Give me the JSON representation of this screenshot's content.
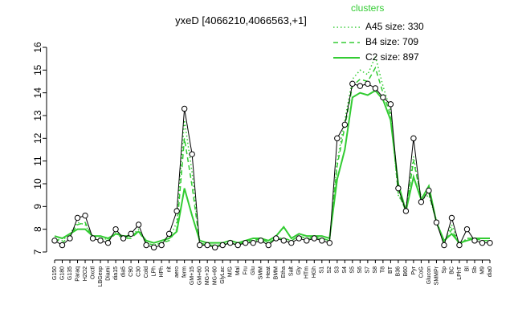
{
  "chart_data": {
    "type": "line",
    "title": "yxeD [4066210,4066563,+1]",
    "legend_title": "clusters",
    "legend_position": "top-right",
    "categories": [
      "G150",
      "G180",
      "G135",
      "Paraq",
      "H2O2",
      "Oxctl",
      "LBGexp",
      "Diami",
      "dia15",
      "dia5",
      "C90",
      "C30",
      "Cold",
      "LPh",
      "HPh",
      "nit",
      "aero",
      "ferm",
      "GM+15",
      "GM+60",
      "MG+10",
      "MG+60",
      "GlyLac",
      "M/G",
      "Mal",
      "Fru",
      "Glu",
      "SMM",
      "Heat",
      "BMM",
      "Etha",
      "Salt",
      "Gly",
      "HTm",
      "HGh",
      "S1",
      "S2",
      "S3",
      "S4",
      "S5",
      "S6",
      "S7",
      "S8",
      "T8",
      "BT",
      "B36",
      "B60",
      "Pyr",
      "CoG",
      "Glucon",
      "SMMPr",
      "Sp",
      "BC",
      "LPhT",
      "Bl",
      "Sb",
      "M9",
      "dia0"
    ],
    "values": [
      7.5,
      7.3,
      7.6,
      8.5,
      8.6,
      7.6,
      7.5,
      7.4,
      8.0,
      7.6,
      7.8,
      8.2,
      7.3,
      7.2,
      7.3,
      7.8,
      8.8,
      13.3,
      11.3,
      7.3,
      7.3,
      7.2,
      7.3,
      7.4,
      7.3,
      7.4,
      7.4,
      7.5,
      7.3,
      7.6,
      7.5,
      7.4,
      7.6,
      7.5,
      7.6,
      7.5,
      7.4,
      12.0,
      12.6,
      14.4,
      14.3,
      14.4,
      14.2,
      13.8,
      13.5,
      9.8,
      8.8,
      12.0,
      9.2,
      9.7,
      8.3,
      7.3,
      8.5,
      7.3,
      8.0,
      7.5,
      7.4,
      7.4
    ],
    "color": "#000000",
    "series": [
      {
        "name": "A45 size: 330",
        "color": "#33cc33",
        "dash": "dotted",
        "values": [
          7.6,
          7.5,
          7.8,
          8.3,
          8.2,
          7.6,
          7.7,
          7.5,
          7.9,
          7.6,
          7.7,
          8.0,
          7.4,
          7.3,
          7.4,
          7.6,
          8.3,
          12.8,
          10.5,
          7.4,
          7.3,
          7.3,
          7.3,
          7.4,
          7.3,
          7.4,
          7.5,
          7.5,
          7.4,
          7.6,
          7.6,
          7.5,
          7.7,
          7.6,
          7.7,
          7.6,
          7.5,
          11.0,
          12.8,
          14.6,
          15.0,
          14.8,
          15.6,
          14.3,
          13.2,
          9.5,
          8.9,
          11.2,
          9.3,
          9.5,
          8.4,
          7.4,
          8.2,
          7.3,
          7.6,
          7.6,
          7.5,
          7.5
        ]
      },
      {
        "name": "B4 size: 709",
        "color": "#33cc33",
        "dash": "dashed",
        "values": [
          7.6,
          7.4,
          7.7,
          8.2,
          8.3,
          7.6,
          7.6,
          7.5,
          7.8,
          7.6,
          7.6,
          7.9,
          7.4,
          7.3,
          7.4,
          7.5,
          8.0,
          12.0,
          9.9,
          7.4,
          7.3,
          7.3,
          7.3,
          7.4,
          7.3,
          7.5,
          7.5,
          7.6,
          7.4,
          7.6,
          7.6,
          7.5,
          7.7,
          7.6,
          7.6,
          7.6,
          7.5,
          10.8,
          12.5,
          14.3,
          14.6,
          14.5,
          15.1,
          14.0,
          13.0,
          9.6,
          8.8,
          11.0,
          9.4,
          9.6,
          8.3,
          7.4,
          8.0,
          7.3,
          7.6,
          7.6,
          7.5,
          7.5
        ]
      },
      {
        "name": "C2 size: 897",
        "color": "#33cc33",
        "dash": "solid",
        "values": [
          7.7,
          7.6,
          7.8,
          8.0,
          8.0,
          7.7,
          7.7,
          7.6,
          7.8,
          7.7,
          7.7,
          7.9,
          7.5,
          7.4,
          7.5,
          7.6,
          7.9,
          9.8,
          8.6,
          7.5,
          7.4,
          7.4,
          7.4,
          7.5,
          7.4,
          7.5,
          7.6,
          7.6,
          7.5,
          7.7,
          8.1,
          7.6,
          7.8,
          7.7,
          7.7,
          7.7,
          7.6,
          10.2,
          11.5,
          13.8,
          14.0,
          13.9,
          14.1,
          13.7,
          12.8,
          10.0,
          8.8,
          10.3,
          9.3,
          9.9,
          8.3,
          7.5,
          7.8,
          7.4,
          7.5,
          7.6,
          7.6,
          7.6
        ]
      }
    ],
    "ylim": [
      7,
      16
    ],
    "yticks": [
      7,
      8,
      9,
      10,
      11,
      12,
      13,
      14,
      15,
      16
    ],
    "grid": false
  }
}
